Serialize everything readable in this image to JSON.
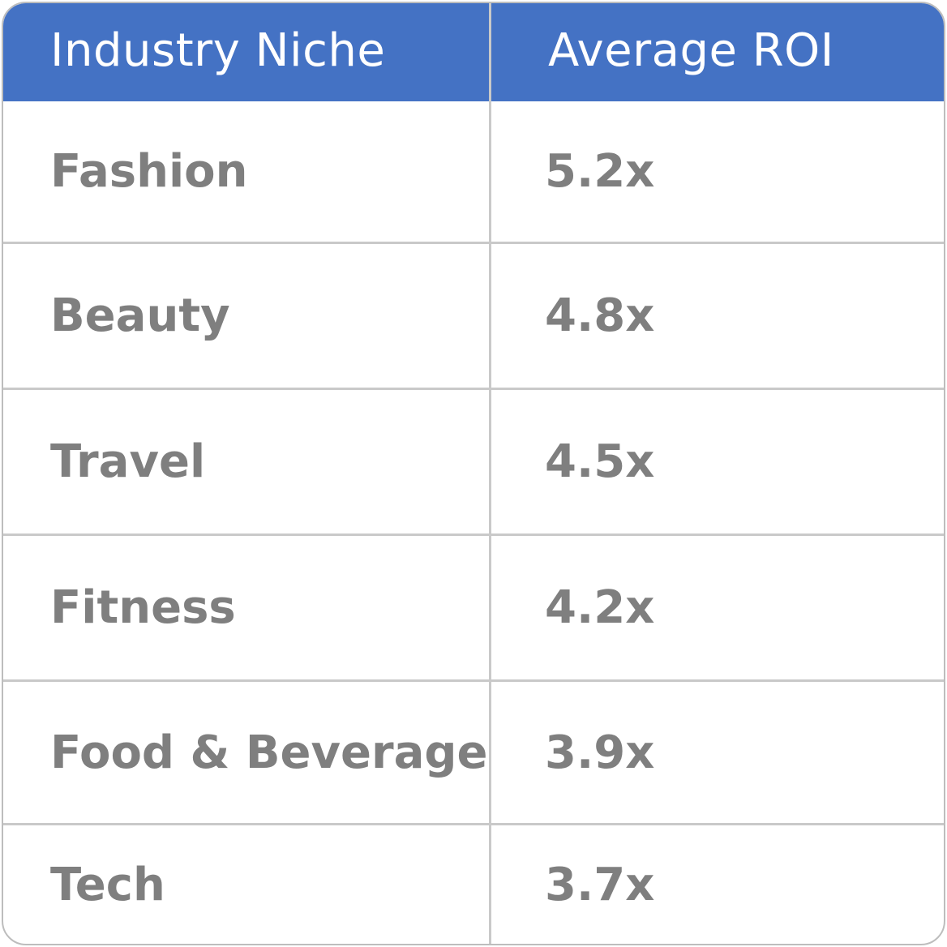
{
  "table": {
    "headers": {
      "niche": "Industry Niche",
      "roi": "Average ROI"
    },
    "rows": [
      {
        "niche": "Fashion",
        "roi": "5.2x"
      },
      {
        "niche": "Beauty",
        "roi": "4.8x"
      },
      {
        "niche": "Travel",
        "roi": "4.5x"
      },
      {
        "niche": "Fitness",
        "roi": "4.2x"
      },
      {
        "niche": "Food & Beverage",
        "roi": "3.9x"
      },
      {
        "niche": "Tech",
        "roi": "3.7x"
      }
    ]
  },
  "colors": {
    "header_background": "#4472c4",
    "header_text": "#ffffff",
    "body_text": "#7f7f7f",
    "grid_lines": "#c9c9c9",
    "outer_border": "#bdbdbd"
  }
}
